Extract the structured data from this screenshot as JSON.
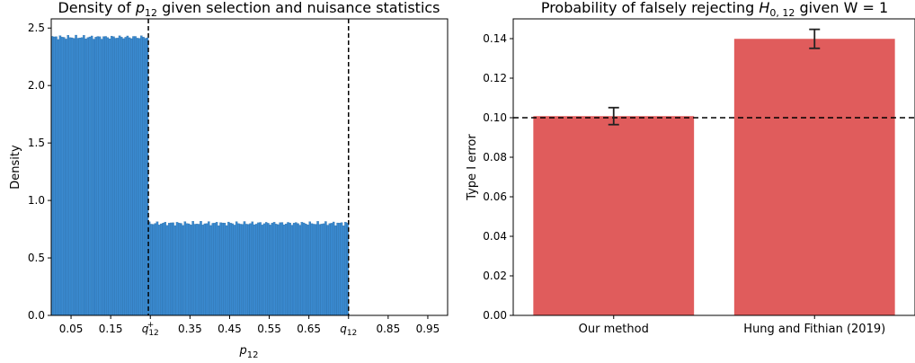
{
  "chart_data": [
    {
      "type": "bar",
      "subtype": "histogram",
      "title_prefix": "Density of ",
      "title_var": "p",
      "title_sub": "12",
      "title_suffix": " given selection and nuisance statistics",
      "xlabel_var": "p",
      "xlabel_sub": "12",
      "ylabel": "Density",
      "xlim": [
        0.0,
        1.0
      ],
      "ylim": [
        0.0,
        2.58
      ],
      "xticks": [
        {
          "x": 0.05,
          "label": "0.05"
        },
        {
          "x": 0.15,
          "label": "0.15"
        },
        {
          "x": 0.25,
          "label": "q",
          "sub": "12",
          "sup": "+"
        },
        {
          "x": 0.35,
          "label": "0.35"
        },
        {
          "x": 0.45,
          "label": "0.45"
        },
        {
          "x": 0.55,
          "label": "0.55"
        },
        {
          "x": 0.65,
          "label": "0.65"
        },
        {
          "x": 0.75,
          "label": "q",
          "sub": "12"
        },
        {
          "x": 0.85,
          "label": "0.85"
        },
        {
          "x": 0.95,
          "label": "0.95"
        }
      ],
      "yticks": [
        {
          "y": 0.0,
          "label": "0.0"
        },
        {
          "y": 0.5,
          "label": "0.5"
        },
        {
          "y": 1.0,
          "label": "1.0"
        },
        {
          "y": 1.5,
          "label": "1.5"
        },
        {
          "y": 2.0,
          "label": "2.0"
        },
        {
          "y": 2.5,
          "label": "2.5"
        }
      ],
      "bin_width": 0.005,
      "segments": [
        {
          "from": 0.0,
          "to": 0.245,
          "density": 2.42
        },
        {
          "from": 0.245,
          "to": 0.75,
          "density": 0.8
        }
      ],
      "vlines": [
        0.245,
        0.75
      ],
      "color": "#3a8ad0"
    },
    {
      "type": "bar",
      "title_prefix": "Probability of falsely rejecting ",
      "title_var": "H",
      "title_sub": "0, 12",
      "title_suffix": " given W = 1",
      "ylabel": "Type I error",
      "categories": [
        "Our method",
        "Hung and Fithian (2019)"
      ],
      "values": [
        0.1008,
        0.1399
      ],
      "errors": [
        0.0043,
        0.0048
      ],
      "ylim": [
        0.0,
        0.15
      ],
      "yticks": [
        "0.00",
        "0.02",
        "0.04",
        "0.06",
        "0.08",
        "0.10",
        "0.12",
        "0.14"
      ],
      "hline": 0.1,
      "color": "#e05c5c"
    }
  ]
}
